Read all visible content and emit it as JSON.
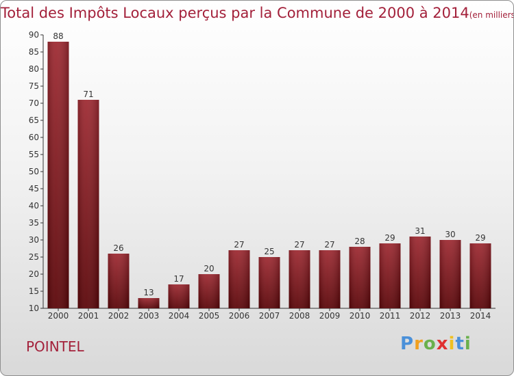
{
  "chart_data": {
    "type": "bar",
    "title": "Total des Impôts Locaux perçus par la Commune de 2000 à 2014",
    "unit": "(en milliers d'€)",
    "categories": [
      "2000",
      "2001",
      "2002",
      "2003",
      "2004",
      "2005",
      "2006",
      "2007",
      "2008",
      "2009",
      "2010",
      "2011",
      "2012",
      "2013",
      "2014"
    ],
    "values": [
      88,
      71,
      26,
      13,
      17,
      20,
      27,
      25,
      27,
      27,
      28,
      29,
      31,
      30,
      29
    ],
    "ylim": [
      10,
      90
    ],
    "yticks": [
      10,
      15,
      20,
      25,
      30,
      35,
      40,
      45,
      50,
      55,
      60,
      65,
      70,
      75,
      80,
      85,
      90
    ],
    "grid": false,
    "bar_color": "#8c1a22",
    "title_color": "#a3203a"
  },
  "commune": "POINTEL",
  "logo": {
    "letters": [
      "P",
      "r",
      "o",
      "x",
      "i",
      "t",
      "i"
    ],
    "colors": [
      "#4a90d9",
      "#f0a020",
      "#6ab04c",
      "#e03030",
      "#f0c020",
      "#4a90d9",
      "#6ab04c"
    ]
  }
}
